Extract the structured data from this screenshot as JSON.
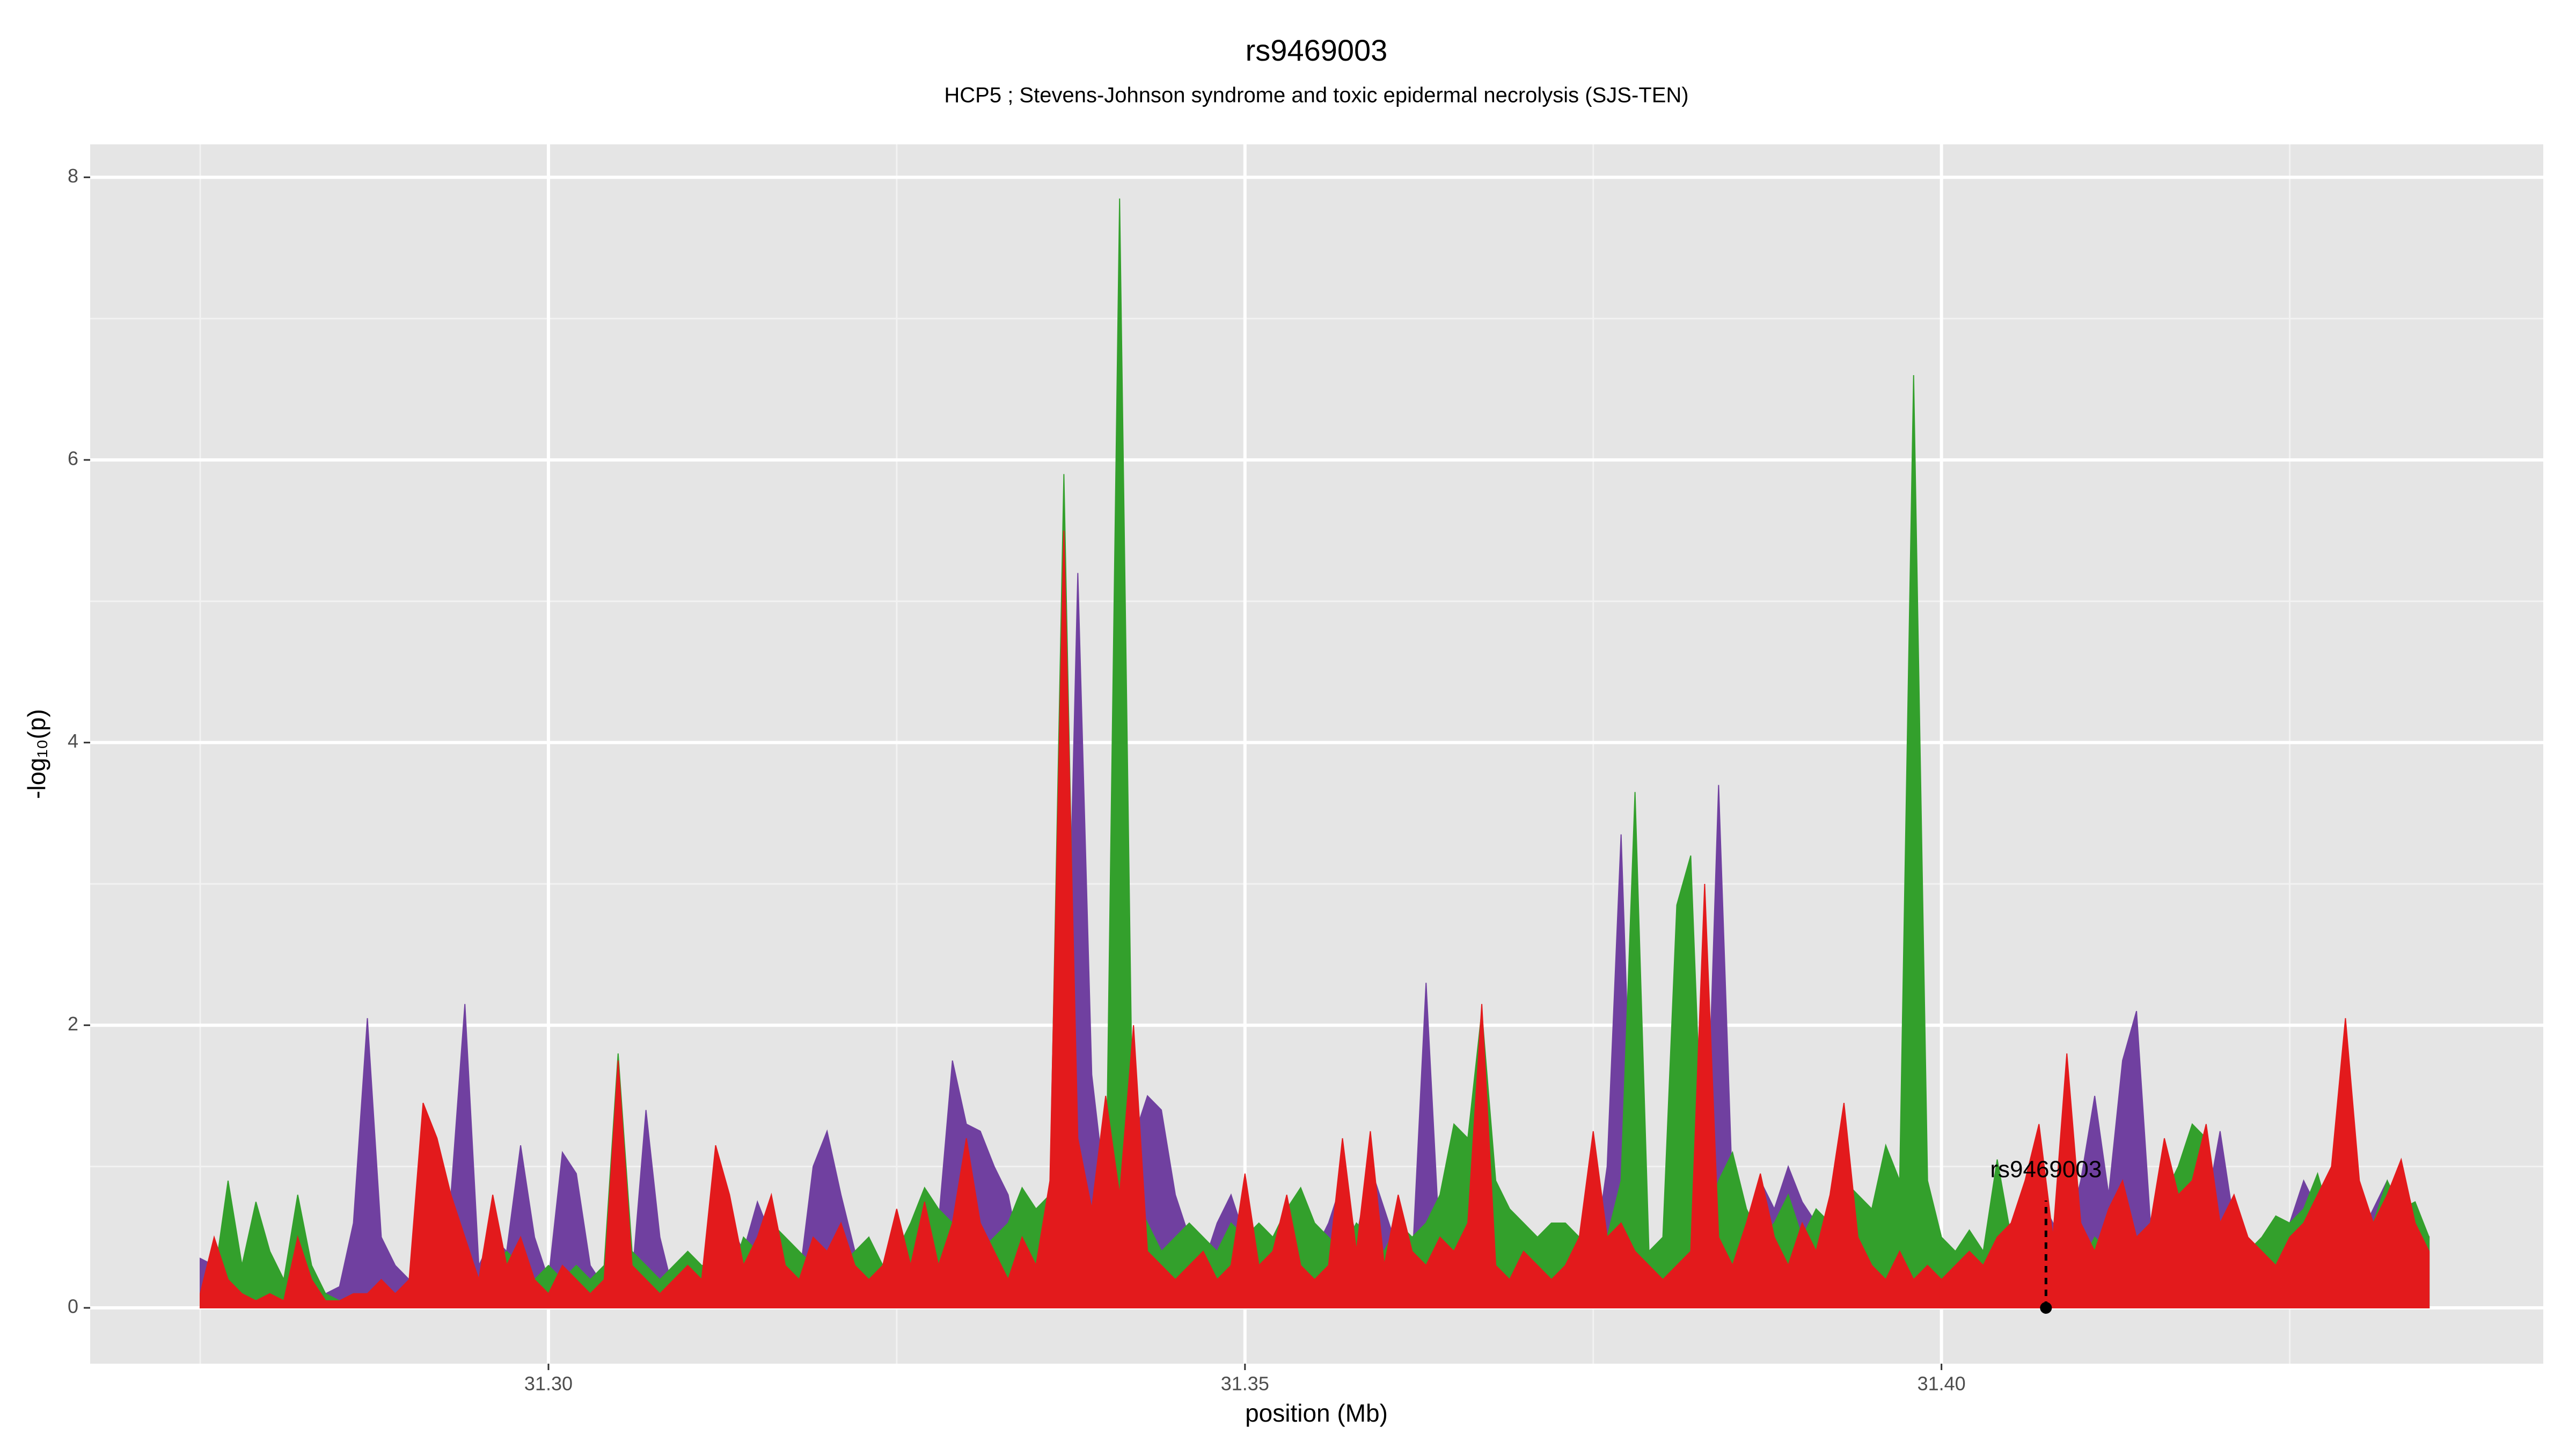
{
  "chart_data": {
    "type": "area",
    "title": "rs9469003",
    "subtitle": "HCP5 ; Stevens-Johnson syndrome and toxic epidermal necrolysis (SJS-TEN)",
    "x_label": "position (Mb)",
    "y_label": "-log₁₀(p)",
    "xlim": [
      31.2671,
      31.4432
    ],
    "ylim": [
      -0.395,
      8.233
    ],
    "xticks": [
      {
        "value": 31.3,
        "label": "31.30"
      },
      {
        "value": 31.35,
        "label": "31.35"
      },
      {
        "value": 31.4,
        "label": "31.40"
      }
    ],
    "x_minor_ticks": [
      31.275,
      31.325,
      31.375,
      31.425
    ],
    "yticks": [
      0,
      2,
      4,
      6,
      8
    ],
    "y_minor_ticks": [
      1,
      3,
      5,
      7
    ],
    "grid": true,
    "annotation": {
      "label": "rs9469003",
      "x": 31.4075,
      "y": 0
    },
    "x": [
      31.275,
      31.276,
      31.277,
      31.278,
      31.279,
      31.28,
      31.281,
      31.282,
      31.283,
      31.284,
      31.285,
      31.286,
      31.287,
      31.288,
      31.289,
      31.29,
      31.291,
      31.292,
      31.293,
      31.294,
      31.295,
      31.296,
      31.297,
      31.298,
      31.299,
      31.3,
      31.301,
      31.302,
      31.303,
      31.304,
      31.305,
      31.306,
      31.307,
      31.308,
      31.309,
      31.31,
      31.311,
      31.312,
      31.313,
      31.314,
      31.315,
      31.316,
      31.317,
      31.318,
      31.319,
      31.32,
      31.321,
      31.322,
      31.323,
      31.324,
      31.325,
      31.326,
      31.327,
      31.328,
      31.329,
      31.33,
      31.331,
      31.332,
      31.333,
      31.334,
      31.335,
      31.336,
      31.337,
      31.338,
      31.339,
      31.34,
      31.341,
      31.342,
      31.343,
      31.344,
      31.345,
      31.346,
      31.347,
      31.348,
      31.349,
      31.35,
      31.351,
      31.352,
      31.353,
      31.354,
      31.355,
      31.356,
      31.357,
      31.358,
      31.359,
      31.36,
      31.361,
      31.362,
      31.363,
      31.364,
      31.365,
      31.366,
      31.367,
      31.368,
      31.369,
      31.37,
      31.371,
      31.372,
      31.373,
      31.374,
      31.375,
      31.376,
      31.377,
      31.378,
      31.379,
      31.38,
      31.381,
      31.382,
      31.383,
      31.384,
      31.385,
      31.386,
      31.387,
      31.388,
      31.389,
      31.39,
      31.391,
      31.392,
      31.393,
      31.394,
      31.395,
      31.396,
      31.397,
      31.398,
      31.399,
      31.4,
      31.401,
      31.402,
      31.403,
      31.404,
      31.405,
      31.406,
      31.407,
      31.408,
      31.409,
      31.41,
      31.411,
      31.412,
      31.413,
      31.414,
      31.415,
      31.416,
      31.417,
      31.418,
      31.419,
      31.42,
      31.421,
      31.422,
      31.423,
      31.424,
      31.425,
      31.426,
      31.427,
      31.428,
      31.429,
      31.43,
      31.431,
      31.432,
      31.433,
      31.434,
      31.435
    ],
    "series": [
      {
        "color": "#7040a0",
        "values": [
          0.35,
          0.3,
          0.15,
          0.1,
          0.05,
          0.1,
          0.05,
          0.1,
          0.25,
          0.1,
          0.15,
          0.6,
          2.05,
          0.5,
          0.3,
          0.2,
          0.4,
          0.3,
          0.8,
          2.15,
          0.3,
          0.5,
          0.4,
          1.15,
          0.5,
          0.2,
          1.1,
          0.95,
          0.3,
          0.15,
          0.4,
          0.2,
          1.4,
          0.5,
          0.1,
          0.2,
          0.15,
          0.3,
          0.6,
          0.4,
          0.75,
          0.5,
          0.3,
          0.2,
          1.0,
          1.25,
          0.8,
          0.4,
          0.5,
          0.2,
          0.3,
          0.2,
          0.4,
          0.6,
          1.75,
          1.3,
          1.25,
          1.0,
          0.8,
          0.3,
          0.2,
          0.5,
          1.0,
          5.2,
          1.65,
          0.8,
          3.3,
          1.2,
          1.5,
          1.4,
          0.8,
          0.5,
          0.3,
          0.6,
          0.8,
          0.5,
          0.4,
          0.3,
          0.6,
          0.5,
          0.4,
          0.6,
          0.9,
          0.5,
          1.0,
          0.7,
          0.4,
          0.3,
          2.3,
          0.4,
          0.3,
          0.2,
          0.4,
          0.3,
          0.2,
          0.1,
          0.3,
          0.2,
          0.1,
          0.2,
          0.3,
          1.0,
          3.35,
          0.4,
          0.2,
          0.3,
          0.5,
          0.4,
          0.6,
          3.7,
          0.8,
          0.5,
          0.9,
          0.7,
          1.0,
          0.75,
          0.6,
          0.4,
          0.5,
          0.3,
          0.2,
          0.1,
          0.2,
          0.3,
          0.2,
          0.3,
          0.4,
          0.2,
          0.3,
          0.2,
          0.5,
          0.3,
          0.8,
          0.6,
          0.5,
          0.9,
          1.5,
          0.8,
          1.75,
          2.1,
          0.6,
          0.75,
          0.5,
          0.9,
          0.7,
          1.25,
          0.6,
          0.4,
          0.3,
          0.5,
          0.6,
          0.9,
          0.7,
          0.8,
          0.6,
          0.5,
          0.7,
          0.9,
          0.6,
          0.4,
          0.5
        ]
      },
      {
        "color": "#33a02c",
        "values": [
          0.05,
          0.2,
          0.9,
          0.3,
          0.75,
          0.4,
          0.2,
          0.8,
          0.3,
          0.1,
          0.05,
          0.1,
          0.05,
          0.1,
          0.1,
          0.15,
          0.2,
          0.3,
          0.4,
          0.3,
          0.2,
          0.3,
          0.4,
          0.3,
          0.2,
          0.3,
          0.2,
          0.3,
          0.2,
          0.3,
          1.8,
          0.4,
          0.3,
          0.2,
          0.3,
          0.4,
          0.3,
          0.3,
          0.2,
          0.5,
          0.4,
          0.6,
          0.5,
          0.4,
          0.3,
          0.4,
          0.3,
          0.4,
          0.5,
          0.3,
          0.4,
          0.6,
          0.85,
          0.7,
          0.6,
          0.5,
          0.4,
          0.5,
          0.6,
          0.85,
          0.7,
          0.8,
          5.9,
          0.9,
          0.5,
          0.6,
          7.85,
          0.8,
          0.6,
          0.4,
          0.5,
          0.6,
          0.5,
          0.4,
          0.6,
          0.5,
          0.6,
          0.5,
          0.7,
          0.85,
          0.6,
          0.5,
          0.4,
          0.6,
          0.5,
          0.4,
          0.6,
          0.5,
          0.6,
          0.8,
          1.3,
          1.2,
          2.1,
          0.9,
          0.7,
          0.6,
          0.5,
          0.6,
          0.6,
          0.5,
          0.6,
          0.5,
          0.9,
          3.65,
          0.4,
          0.5,
          2.85,
          3.2,
          0.6,
          0.9,
          1.1,
          0.7,
          0.5,
          0.6,
          0.8,
          0.5,
          0.7,
          0.6,
          0.9,
          0.8,
          0.7,
          1.15,
          0.9,
          6.6,
          0.9,
          0.5,
          0.4,
          0.55,
          0.4,
          1.05,
          0.5,
          0.4,
          0.6,
          0.5,
          0.4,
          0.3,
          0.5,
          0.4,
          0.6,
          0.5,
          0.6,
          0.8,
          1.0,
          1.3,
          1.2,
          0.6,
          0.5,
          0.4,
          0.5,
          0.65,
          0.6,
          0.7,
          0.95,
          0.6,
          0.5,
          0.8,
          0.6,
          0.9,
          0.7,
          0.75,
          0.5
        ]
      },
      {
        "color": "#e31a1c",
        "values": [
          0.1,
          0.5,
          0.2,
          0.1,
          0.05,
          0.1,
          0.05,
          0.5,
          0.2,
          0.05,
          0.05,
          0.1,
          0.1,
          0.2,
          0.1,
          0.2,
          1.45,
          1.2,
          0.8,
          0.5,
          0.2,
          0.8,
          0.3,
          0.5,
          0.2,
          0.1,
          0.3,
          0.2,
          0.1,
          0.2,
          1.75,
          0.3,
          0.2,
          0.1,
          0.2,
          0.3,
          0.2,
          1.15,
          0.8,
          0.3,
          0.5,
          0.8,
          0.3,
          0.2,
          0.5,
          0.4,
          0.6,
          0.3,
          0.2,
          0.3,
          0.7,
          0.3,
          0.75,
          0.3,
          0.6,
          1.2,
          0.6,
          0.4,
          0.2,
          0.5,
          0.3,
          0.9,
          5.5,
          1.2,
          0.7,
          1.5,
          0.8,
          2.0,
          0.4,
          0.3,
          0.2,
          0.3,
          0.4,
          0.2,
          0.3,
          0.95,
          0.3,
          0.4,
          0.8,
          0.3,
          0.2,
          0.3,
          1.2,
          0.4,
          1.25,
          0.3,
          0.8,
          0.4,
          0.3,
          0.5,
          0.4,
          0.6,
          2.15,
          0.3,
          0.2,
          0.4,
          0.3,
          0.2,
          0.3,
          0.5,
          1.25,
          0.5,
          0.6,
          0.4,
          0.3,
          0.2,
          0.3,
          0.4,
          3.0,
          0.5,
          0.3,
          0.6,
          0.95,
          0.5,
          0.3,
          0.6,
          0.4,
          0.8,
          1.45,
          0.5,
          0.3,
          0.2,
          0.4,
          0.2,
          0.3,
          0.2,
          0.3,
          0.4,
          0.3,
          0.5,
          0.6,
          0.9,
          1.3,
          0.5,
          1.8,
          0.6,
          0.4,
          0.7,
          0.9,
          0.5,
          0.6,
          1.2,
          0.8,
          0.9,
          1.3,
          0.6,
          0.8,
          0.5,
          0.4,
          0.3,
          0.5,
          0.6,
          0.8,
          1.0,
          2.05,
          0.9,
          0.6,
          0.8,
          1.05,
          0.6,
          0.4
        ]
      }
    ]
  }
}
